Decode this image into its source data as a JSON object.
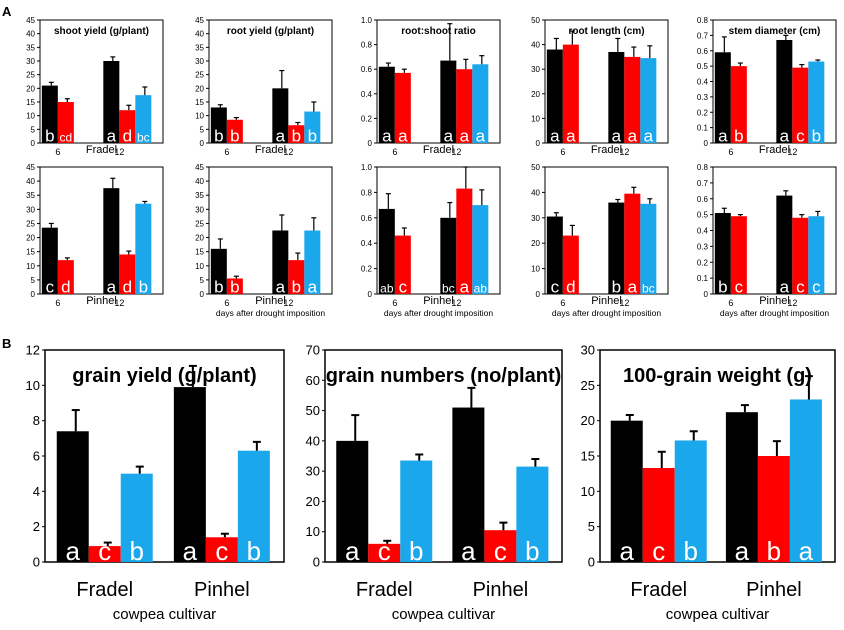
{
  "panel_labels": [
    "A",
    "B"
  ],
  "colors": {
    "series_1": "#000000",
    "series_2": "#ff0000",
    "series_3": "#1aa7ec"
  },
  "chart_data": [
    {
      "id": "a-shoot-fradel",
      "type": "bar",
      "title": "shoot yield (g/plant)",
      "cultivar": "Fradel",
      "categories": [
        "6",
        "12"
      ],
      "ylim": [
        0,
        45
      ],
      "yticks": [
        0,
        5,
        10,
        15,
        20,
        25,
        30,
        35,
        40,
        45
      ],
      "series": [
        {
          "values": [
            21,
            30
          ],
          "errors": [
            1.2,
            1.5
          ]
        },
        {
          "values": [
            15,
            12
          ],
          "errors": [
            1.2,
            1.8
          ]
        },
        {
          "values": [
            null,
            17.5
          ],
          "errors": [
            null,
            3
          ]
        }
      ],
      "letters": [
        [
          "b",
          "a"
        ],
        [
          "cd",
          "d"
        ],
        [
          null,
          "bc"
        ]
      ]
    },
    {
      "id": "a-root-fradel",
      "type": "bar",
      "title": "root yield (g/plant)",
      "cultivar": "Fradel",
      "categories": [
        "6",
        "12"
      ],
      "ylim": [
        0,
        45
      ],
      "yticks": [
        0,
        5,
        10,
        15,
        20,
        25,
        30,
        35,
        40,
        45
      ],
      "series": [
        {
          "values": [
            13,
            20
          ],
          "errors": [
            1,
            6.5
          ]
        },
        {
          "values": [
            8.5,
            6.5
          ],
          "errors": [
            0.8,
            1
          ]
        },
        {
          "values": [
            null,
            11.5
          ],
          "errors": [
            null,
            3.5
          ]
        }
      ],
      "letters": [
        [
          "b",
          "a"
        ],
        [
          "b",
          "b"
        ],
        [
          null,
          "b"
        ]
      ]
    },
    {
      "id": "a-ratio-fradel",
      "type": "bar",
      "title": "root:shoot ratio",
      "cultivar": "Fradel",
      "categories": [
        "6",
        "12"
      ],
      "ylim": [
        0,
        1.0
      ],
      "yticks": [
        "0",
        "0.2",
        "0.4",
        "0.6",
        "0.8",
        "1.0"
      ],
      "ystep": 0.2,
      "series": [
        {
          "values": [
            0.62,
            0.67
          ],
          "errors": [
            0.03,
            0.3
          ]
        },
        {
          "values": [
            0.57,
            0.6
          ],
          "errors": [
            0.03,
            0.08
          ]
        },
        {
          "values": [
            null,
            0.64
          ],
          "errors": [
            null,
            0.07
          ]
        }
      ],
      "letters": [
        [
          "a",
          "a"
        ],
        [
          "a",
          "a"
        ],
        [
          null,
          "a"
        ]
      ]
    },
    {
      "id": "a-length-fradel",
      "type": "bar",
      "title": "root length (cm)",
      "cultivar": "Fradel",
      "categories": [
        "6",
        "12"
      ],
      "ylim": [
        0,
        50
      ],
      "yticks": [
        0,
        10,
        20,
        30,
        40,
        50
      ],
      "series": [
        {
          "values": [
            38,
            37
          ],
          "errors": [
            4.5,
            5.5
          ]
        },
        {
          "values": [
            40,
            35
          ],
          "errors": [
            5.5,
            4
          ]
        },
        {
          "values": [
            null,
            34.5
          ],
          "errors": [
            null,
            5
          ]
        }
      ],
      "letters": [
        [
          "a",
          "a"
        ],
        [
          "a",
          "a"
        ],
        [
          null,
          "a"
        ]
      ]
    },
    {
      "id": "a-stem-fradel",
      "type": "bar",
      "title": "stem diameter (cm)",
      "cultivar": "Fradel",
      "categories": [
        "6",
        "12"
      ],
      "ylim": [
        0,
        0.8
      ],
      "yticks": [
        "0",
        "0.1",
        "0.2",
        "0.3",
        "0.4",
        "0.5",
        "0.6",
        "0.7",
        "0.8"
      ],
      "ystep": 0.1,
      "series": [
        {
          "values": [
            0.59,
            0.67
          ],
          "errors": [
            0.1,
            0.03
          ]
        },
        {
          "values": [
            0.5,
            0.49
          ],
          "errors": [
            0.02,
            0.02
          ]
        },
        {
          "values": [
            null,
            0.53
          ],
          "errors": [
            null,
            0.01
          ]
        }
      ],
      "letters": [
        [
          "a",
          "a"
        ],
        [
          "b",
          "c"
        ],
        [
          null,
          "b"
        ]
      ]
    },
    {
      "id": "a-shoot-pinhel",
      "type": "bar",
      "title": "",
      "cultivar": "Pinhel",
      "xlabel": "",
      "categories": [
        "6",
        "12"
      ],
      "ylim": [
        0,
        45
      ],
      "yticks": [
        0,
        5,
        10,
        15,
        20,
        25,
        30,
        35,
        40,
        45
      ],
      "series": [
        {
          "values": [
            23.5,
            37.5
          ],
          "errors": [
            1.5,
            3.5
          ]
        },
        {
          "values": [
            12,
            14
          ],
          "errors": [
            0.8,
            1.2
          ]
        },
        {
          "values": [
            null,
            32
          ],
          "errors": [
            null,
            0.8
          ]
        }
      ],
      "letters": [
        [
          "c",
          "a"
        ],
        [
          "d",
          "d"
        ],
        [
          null,
          "b"
        ]
      ]
    },
    {
      "id": "a-root-pinhel",
      "type": "bar",
      "title": "",
      "cultivar": "Pinhel",
      "xlabel": "days after drought imposition",
      "categories": [
        "6",
        "12"
      ],
      "ylim": [
        0,
        45
      ],
      "yticks": [
        0,
        5,
        10,
        15,
        20,
        25,
        30,
        35,
        40,
        45
      ],
      "series": [
        {
          "values": [
            16,
            22.5
          ],
          "errors": [
            3.5,
            5.5
          ]
        },
        {
          "values": [
            5.5,
            12
          ],
          "errors": [
            0.8,
            2.5
          ]
        },
        {
          "values": [
            null,
            22.5
          ],
          "errors": [
            null,
            4.5
          ]
        }
      ],
      "letters": [
        [
          "b",
          "a"
        ],
        [
          "b",
          "b"
        ],
        [
          null,
          "a"
        ]
      ]
    },
    {
      "id": "a-ratio-pinhel",
      "type": "bar",
      "title": "",
      "cultivar": "Pinhel",
      "xlabel": "days after drought imposition",
      "categories": [
        "6",
        "12"
      ],
      "ylim": [
        0,
        1.0
      ],
      "yticks": [
        "0",
        "0.2",
        "0.4",
        "0.6",
        "0.8",
        "1.0"
      ],
      "ystep": 0.2,
      "series": [
        {
          "values": [
            0.67,
            0.6
          ],
          "errors": [
            0.12,
            0.12
          ]
        },
        {
          "values": [
            0.46,
            0.83
          ],
          "errors": [
            0.06,
            0.17
          ]
        },
        {
          "values": [
            null,
            0.7
          ],
          "errors": [
            null,
            0.12
          ]
        }
      ],
      "letters": [
        [
          "ab",
          "bc"
        ],
        [
          "c",
          "a"
        ],
        [
          null,
          "ab"
        ]
      ]
    },
    {
      "id": "a-length-pinhel",
      "type": "bar",
      "title": "",
      "cultivar": "Pinhel",
      "xlabel": "days after drought imposition",
      "categories": [
        "6",
        "12"
      ],
      "ylim": [
        0,
        50
      ],
      "yticks": [
        0,
        10,
        20,
        30,
        40,
        50
      ],
      "series": [
        {
          "values": [
            30.5,
            36
          ],
          "errors": [
            1.5,
            1.2
          ]
        },
        {
          "values": [
            23,
            39.5
          ],
          "errors": [
            4,
            2.5
          ]
        },
        {
          "values": [
            null,
            35.5
          ],
          "errors": [
            null,
            2
          ]
        }
      ],
      "letters": [
        [
          "c",
          "b"
        ],
        [
          "d",
          "a"
        ],
        [
          null,
          "bc"
        ]
      ]
    },
    {
      "id": "a-stem-pinhel",
      "type": "bar",
      "title": "",
      "cultivar": "Pinhel",
      "xlabel": "days after drought imposition",
      "categories": [
        "6",
        "12"
      ],
      "ylim": [
        0,
        0.8
      ],
      "yticks": [
        "0",
        "0.1",
        "0.2",
        "0.3",
        "0.4",
        "0.5",
        "0.6",
        "0.7",
        "0.8"
      ],
      "ystep": 0.1,
      "series": [
        {
          "values": [
            0.51,
            0.62
          ],
          "errors": [
            0.03,
            0.03
          ]
        },
        {
          "values": [
            0.49,
            0.48
          ],
          "errors": [
            0.01,
            0.02
          ]
        },
        {
          "values": [
            null,
            0.49
          ],
          "errors": [
            null,
            0.03
          ]
        }
      ],
      "letters": [
        [
          "b",
          "a"
        ],
        [
          "c",
          "c"
        ],
        [
          null,
          "c"
        ]
      ]
    },
    {
      "id": "b-grain-yield",
      "type": "bar",
      "title": "grain yield (g/plant)",
      "xlabel": "cowpea cultivar",
      "categories": [
        "Fradel",
        "Pinhel"
      ],
      "ylim": [
        0,
        12
      ],
      "yticks": [
        0,
        2,
        4,
        6,
        8,
        10,
        12
      ],
      "series": [
        {
          "values": [
            7.4,
            9.9
          ],
          "errors": [
            1.2,
            1.2
          ]
        },
        {
          "values": [
            0.9,
            1.4
          ],
          "errors": [
            0.2,
            0.2
          ]
        },
        {
          "values": [
            5.0,
            6.3
          ],
          "errors": [
            0.4,
            0.5
          ]
        }
      ],
      "letters": [
        [
          "a",
          "a"
        ],
        [
          "c",
          "c"
        ],
        [
          "b",
          "b"
        ]
      ]
    },
    {
      "id": "b-grain-numbers",
      "type": "bar",
      "title": "grain numbers (no/plant)",
      "xlabel": "cowpea cultivar",
      "categories": [
        "Fradel",
        "Pinhel"
      ],
      "ylim": [
        0,
        70
      ],
      "yticks": [
        0,
        10,
        20,
        30,
        40,
        50,
        60,
        70
      ],
      "series": [
        {
          "values": [
            40,
            51
          ],
          "errors": [
            8.5,
            6.5
          ]
        },
        {
          "values": [
            6,
            10.5
          ],
          "errors": [
            1,
            2.5
          ]
        },
        {
          "values": [
            33.5,
            31.5
          ],
          "errors": [
            2,
            2.5
          ]
        }
      ],
      "letters": [
        [
          "a",
          "a"
        ],
        [
          "c",
          "c"
        ],
        [
          "b",
          "b"
        ]
      ]
    },
    {
      "id": "b-grain-weight",
      "type": "bar",
      "title": "100-grain weight (g)",
      "xlabel": "cowpea cultivar",
      "categories": [
        "Fradel",
        "Pinhel"
      ],
      "ylim": [
        0,
        30
      ],
      "yticks": [
        0,
        5,
        10,
        15,
        20,
        25,
        30
      ],
      "series": [
        {
          "values": [
            20,
            21.2
          ],
          "errors": [
            0.8,
            1
          ]
        },
        {
          "values": [
            13.3,
            15
          ],
          "errors": [
            2.3,
            2.1
          ]
        },
        {
          "values": [
            17.2,
            23
          ],
          "errors": [
            1.3,
            3.3
          ]
        }
      ],
      "letters": [
        [
          "a",
          "a"
        ],
        [
          "c",
          "b"
        ],
        [
          "b",
          "a"
        ]
      ]
    }
  ]
}
